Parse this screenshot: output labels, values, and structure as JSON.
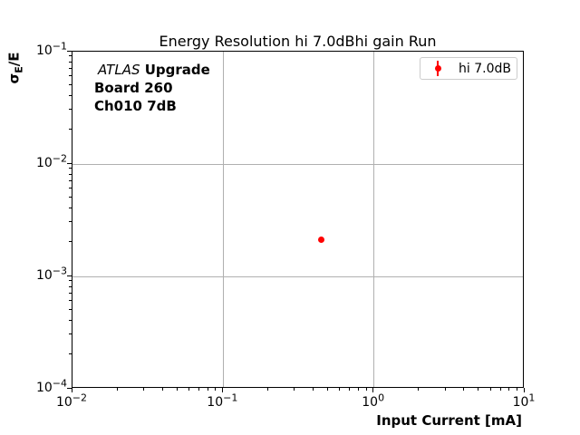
{
  "chart_data": {
    "type": "scatter",
    "title": "Energy Resolution hi 7.0dBhi gain Run",
    "xlabel": "Input Current [mA]",
    "ylabel": "σ_E/E",
    "xscale": "log",
    "yscale": "log",
    "xlim": [
      0.01,
      10
    ],
    "ylim": [
      0.0001,
      0.1
    ],
    "x_major_ticks": [
      0.01,
      0.1,
      1,
      10
    ],
    "y_major_ticks": [
      0.0001,
      0.001,
      0.01,
      0.1
    ],
    "grid": true,
    "legend_position": "upper right",
    "series": [
      {
        "name": "hi 7.0dB",
        "marker": "circle-with-errorbar",
        "color": "#ff0000",
        "points": [
          {
            "x": 0.447,
            "y": 0.00212
          }
        ]
      }
    ]
  },
  "ylabel_parts": {
    "symbol": "σ",
    "subscript": "E",
    "rest": "/E"
  },
  "annotation": {
    "experiment": "ATLAS",
    "tag": "Upgrade",
    "board": "Board 260",
    "channel": "Ch010 7dB"
  },
  "legend": {
    "label": "hi 7.0dB",
    "marker_color": "#ff0000"
  },
  "colors": {
    "grid": "#b0b0b0",
    "spine": "#000000",
    "background": "#ffffff",
    "marker": "#ff0000",
    "legend_border": "#cccccc"
  }
}
